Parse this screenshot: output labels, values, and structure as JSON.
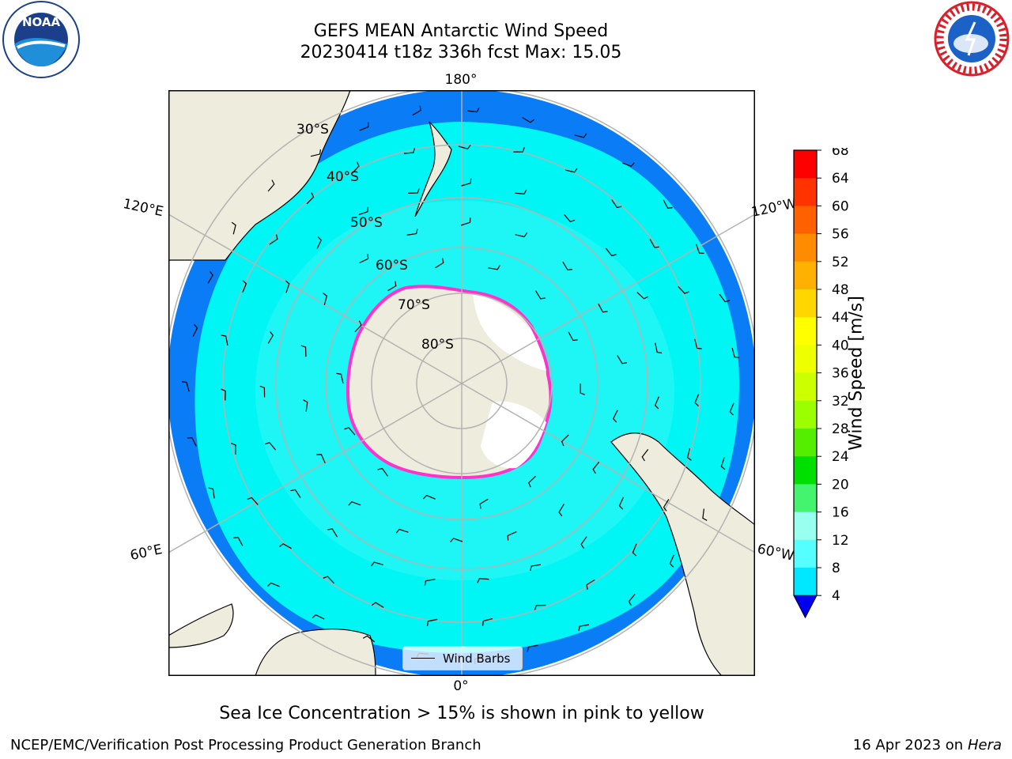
{
  "title_line1": "GEFS MEAN Antarctic Wind Speed",
  "title_line2": "20230414 t18z 336h fcst   Max: 15.05",
  "logos": {
    "left": {
      "name": "NOAA",
      "icon": "noaa-logo"
    },
    "right": {
      "name": "NATIONAL WEATHER SERVICE",
      "icon": "nws-logo"
    }
  },
  "map": {
    "projection": "south polar stereographic",
    "longitude_labels": [
      "180°",
      "120°E",
      "120°W",
      "60°E",
      "60°W",
      "0°"
    ],
    "latitude_labels": [
      "30°S",
      "40°S",
      "50°S",
      "60°S",
      "70°S",
      "80°S"
    ],
    "legend_label": "Wind Barbs",
    "colors": {
      "land": "#eeecdc",
      "ocean_low": "#0a7cf6",
      "ocean_mid": "#00f5f5",
      "ocean_high": "#57f9f9",
      "ice_edge": "#ff33cc",
      "grid": "#b3b3b3"
    }
  },
  "colorbar": {
    "label": "Wind Speed [m/s]",
    "ticks": [
      "68",
      "64",
      "60",
      "56",
      "52",
      "48",
      "44",
      "40",
      "36",
      "32",
      "28",
      "24",
      "20",
      "16",
      "12",
      "8",
      "4"
    ],
    "colors": [
      "#ff0000",
      "#ff3300",
      "#ff6000",
      "#ff8c00",
      "#ffb000",
      "#ffd600",
      "#ffff00",
      "#eeff00",
      "#ccff00",
      "#9bff00",
      "#55ee00",
      "#00e000",
      "#44f36e",
      "#99ffee",
      "#55ffff",
      "#00e8ff",
      "#0a7cf6"
    ],
    "extend_color": "#0000ee"
  },
  "caption": "Sea Ice Concentration > 15% is shown in pink to yellow",
  "footer_left": "NCEP/EMC/Verification Post Processing Product Generation Branch",
  "footer_date": "16 Apr 2023 on ",
  "footer_machine": "Hera"
}
